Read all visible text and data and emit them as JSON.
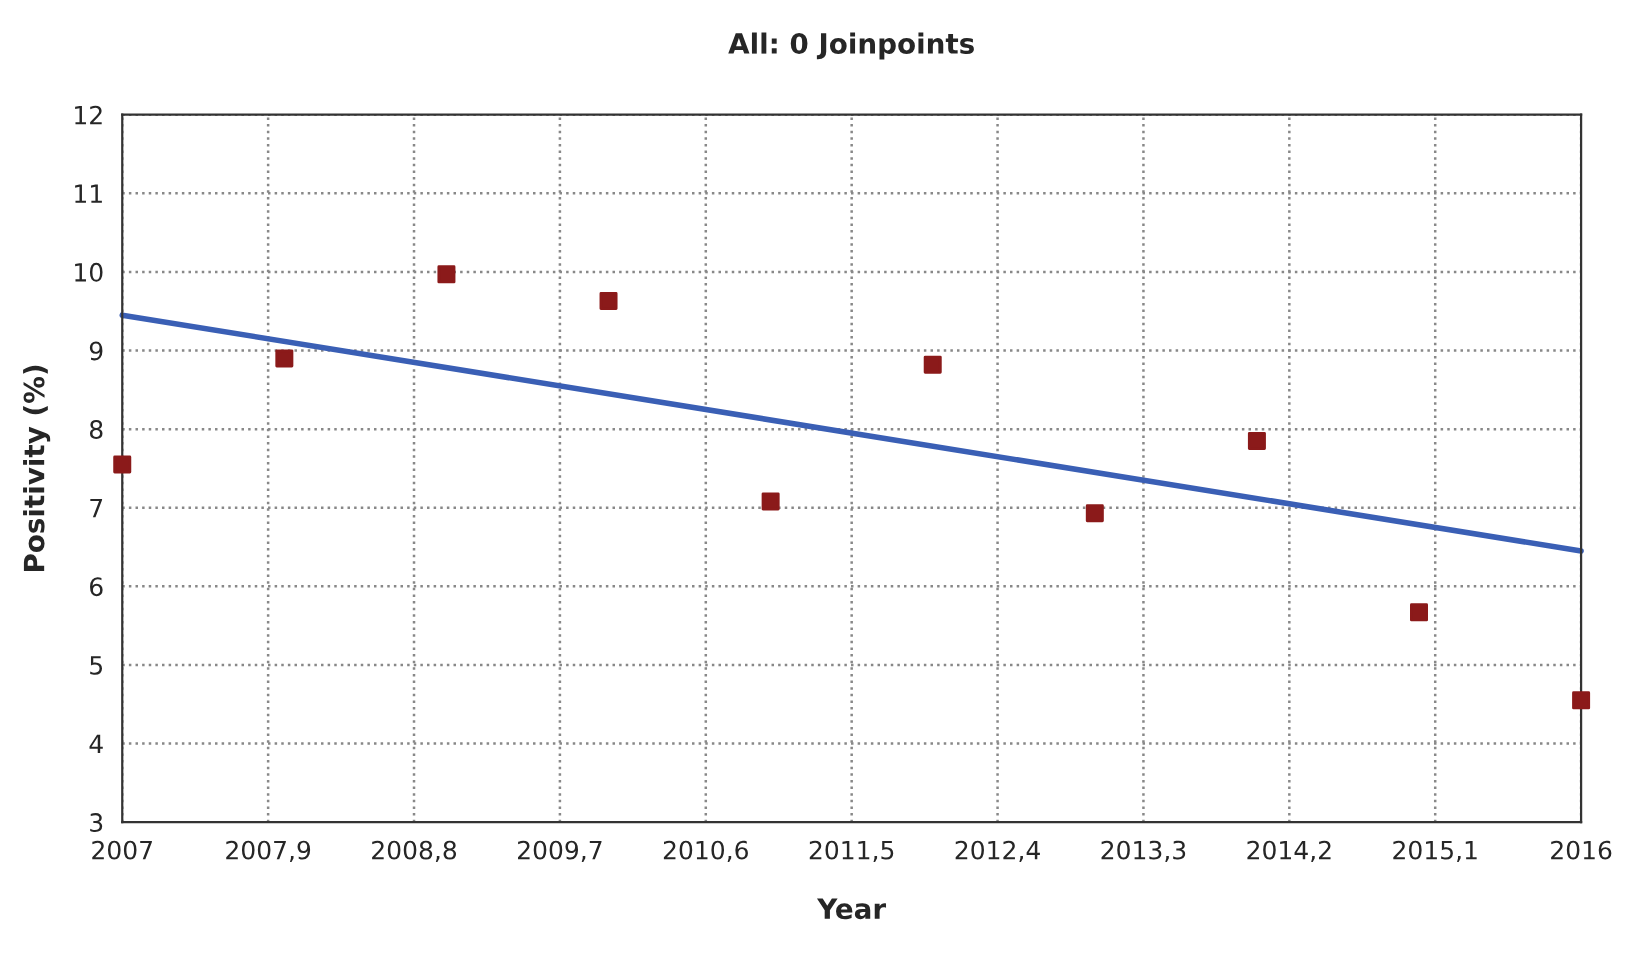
{
  "chart_data": {
    "type": "scatter",
    "title": "All: 0 Joinpoints",
    "xlabel": "Year",
    "ylabel": "Positivity (%)",
    "series": [
      {
        "color": "#8b1a1a",
        "marker": "square",
        "x": [
          2007,
          2008,
          2009,
          2010,
          2011,
          2012,
          2013,
          2014,
          2015,
          2016
        ],
        "values": [
          7.55,
          8.9,
          9.97,
          9.63,
          7.08,
          8.82,
          6.93,
          7.85,
          5.67,
          4.55
        ]
      },
      {
        "type": "line",
        "color": "#3a5fb5",
        "x": [
          2007,
          2016
        ],
        "values": [
          9.45,
          6.45
        ]
      }
    ],
    "xlim": [
      2007,
      2016
    ],
    "xticks": [
      2007,
      {
        "value": 2007.9,
        "label": "2007,9"
      },
      {
        "value": 2008.8,
        "label": "2008,8"
      },
      {
        "value": 2009.7,
        "label": "2009,7"
      },
      {
        "value": 2010.6,
        "label": "2010,6"
      },
      {
        "value": 2011.5,
        "label": "2011,5"
      },
      {
        "value": 2012.4,
        "label": "2012,4"
      },
      {
        "value": 2013.3,
        "label": "2013,3"
      },
      {
        "value": 2014.2,
        "label": "2014,2"
      },
      {
        "value": 2015.1,
        "label": "2015,1"
      },
      2016
    ],
    "ylim": [
      3,
      12
    ],
    "yticks": [
      3,
      4,
      5,
      6,
      7,
      8,
      9,
      10,
      11,
      12
    ],
    "grid": true,
    "line_style": "solid"
  }
}
